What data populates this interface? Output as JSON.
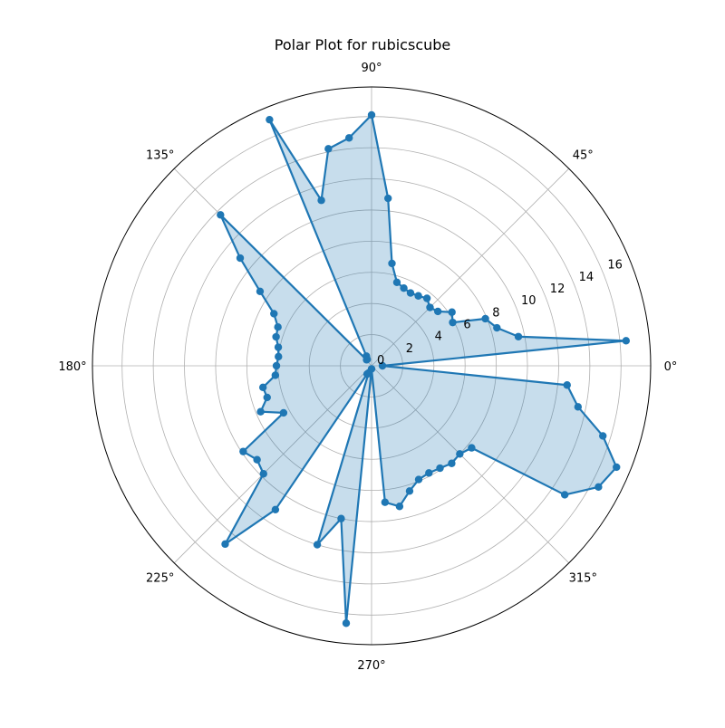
{
  "chart_data": {
    "type": "line",
    "subtype": "polar",
    "title": "Polar Plot for rubicscube",
    "theta_deg": [
      0,
      5.625,
      11.25,
      16.875,
      22.5,
      28.125,
      33.75,
      39.375,
      45,
      50.625,
      56.25,
      61.875,
      67.5,
      73.125,
      78.75,
      84.375,
      90,
      95.625,
      101.25,
      106.875,
      112.5,
      118.125,
      123.75,
      129.375,
      135,
      140.625,
      146.25,
      151.875,
      157.5,
      163.125,
      168.75,
      174.375,
      180,
      185.625,
      191.25,
      196.875,
      202.5,
      208.125,
      213.75,
      219.375,
      225,
      230.625,
      236.25,
      241.875,
      247.5,
      253.125,
      258.75,
      264.375,
      270,
      275.625,
      281.25,
      286.875,
      292.5,
      298.125,
      303.75,
      309.375,
      315,
      320.625,
      326.25,
      331.875,
      337.5,
      343.125,
      348.75,
      354.375
    ],
    "r": [
      0.7,
      16.4,
      9.6,
      8.4,
      7.9,
      5.9,
      6.2,
      5.5,
      5.3,
      5.6,
      5.4,
      5.3,
      5.4,
      5.6,
      6.7,
      10.8,
      16.1,
      14.7,
      14.2,
      11.1,
      17.1,
      0.7,
      0.5,
      0.5,
      13.7,
      10.9,
      8.6,
      7.1,
      6.5,
      6.4,
      6.1,
      6.0,
      6.1,
      6.2,
      7.1,
      7.0,
      7.7,
      6.4,
      9.9,
      9.5,
      9.8,
      14.8,
      11.1,
      0.6,
      0.5,
      12.0,
      10.0,
      16.6,
      0.2,
      8.8,
      9.2,
      8.4,
      7.9,
      7.8,
      7.9,
      8.1,
      8.0,
      8.3,
      14.9,
      16.5,
      17.0,
      15.5,
      13.5,
      12.6
    ],
    "rlim": [
      0,
      17.9
    ],
    "r_ticks": [
      0,
      2,
      4,
      6,
      8,
      10,
      12,
      14,
      16
    ],
    "r_tick_labels": [
      "0",
      "2",
      "4",
      "6",
      "8",
      "10",
      "12",
      "14",
      "16"
    ],
    "theta_ticks": [
      0,
      45,
      90,
      135,
      180,
      225,
      270,
      315
    ],
    "theta_tick_labels": [
      "0°",
      "45°",
      "90°",
      "135°",
      "180°",
      "225°",
      "270°",
      "315°"
    ],
    "r_label_angle_deg": 22.5,
    "grid": true,
    "fill": true,
    "markers": true,
    "colors": {
      "line": "#1f77b4",
      "fill": "#1f77b4",
      "grid": "#b0b0b0"
    }
  }
}
